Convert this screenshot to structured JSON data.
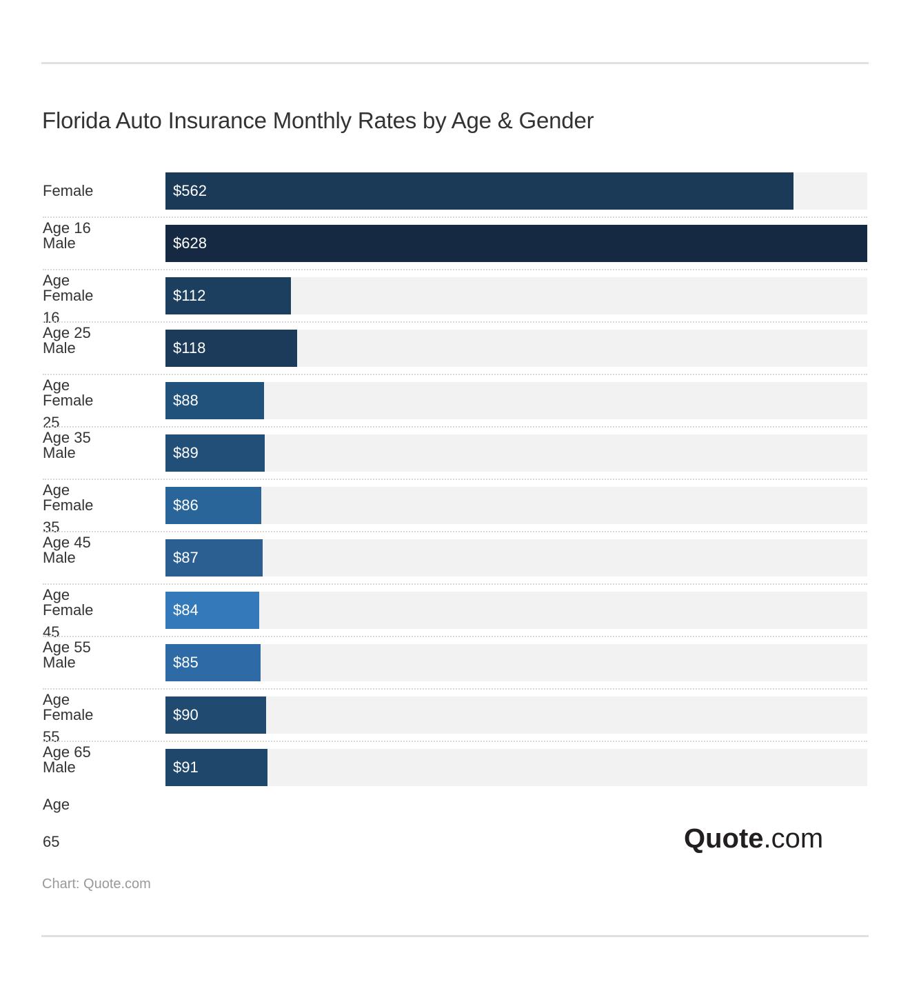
{
  "chart_data": {
    "type": "bar",
    "orientation": "horizontal",
    "title": "Florida Auto Insurance Monthly Rates by Age & Gender",
    "categories": [
      "Female Age 16",
      "Male Age 16",
      "Female Age 25",
      "Male Age 25",
      "Female Age 35",
      "Male Age 35",
      "Female Age 45",
      "Male Age 45",
      "Female Age 55",
      "Male Age 55",
      "Female Age 65",
      "Male Age 65"
    ],
    "values": [
      562,
      628,
      112,
      118,
      88,
      89,
      86,
      87,
      84,
      85,
      90,
      91
    ],
    "value_labels": [
      "$562",
      "$628",
      "$112",
      "$118",
      "$88",
      "$89",
      "$86",
      "$87",
      "$84",
      "$85",
      "$90",
      "$91"
    ],
    "colors": [
      "#1b3a57",
      "#152a42",
      "#1c3f60",
      "#1c3b5a",
      "#21527c",
      "#224f78",
      "#2a6599",
      "#2b5f91",
      "#347abb",
      "#2e6aa5",
      "#214a70",
      "#1f466b"
    ],
    "xlim": [
      0,
      628
    ],
    "grid": false,
    "track_color": "#f2f2f2"
  },
  "logo": {
    "bold": "Quote",
    "light": ".com"
  },
  "source": "Chart: Quote.com"
}
